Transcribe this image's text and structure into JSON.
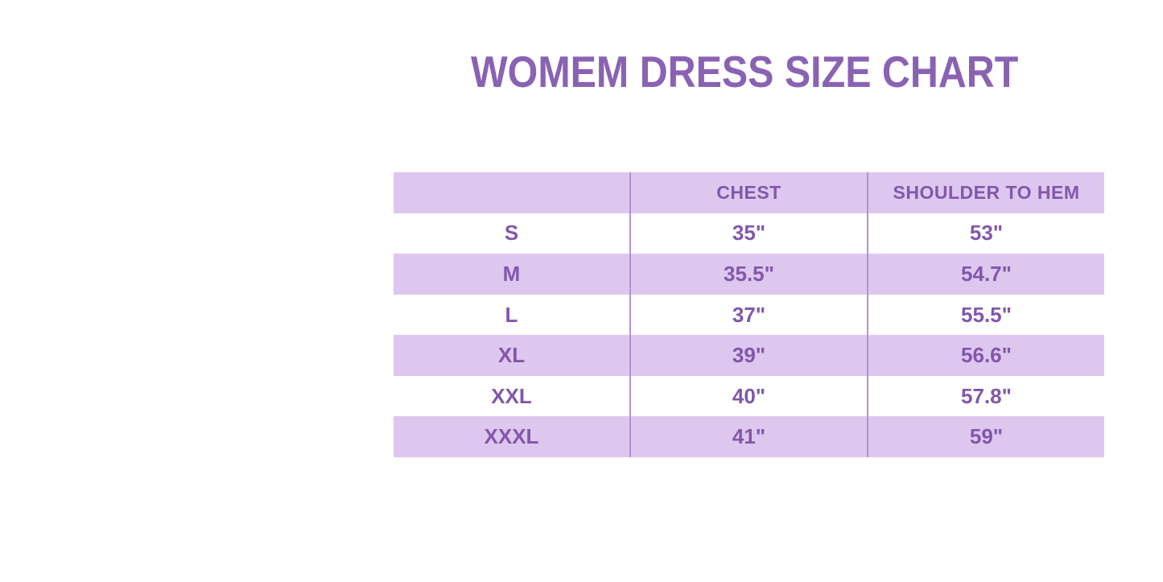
{
  "chart_data": {
    "type": "table",
    "title": "WOMEM DRESS SIZE CHART",
    "columns": [
      "",
      "CHEST",
      "SHOULDER TO HEM"
    ],
    "rows": [
      [
        "S",
        "35\"",
        "53\""
      ],
      [
        "M",
        "35.5\"",
        "54.7\""
      ],
      [
        "L",
        "37\"",
        "55.5\""
      ],
      [
        "XL",
        "39\"",
        "56.6\""
      ],
      [
        "XXL",
        "40\"",
        "57.8\""
      ],
      [
        "XXXL",
        "41\"",
        "59\""
      ]
    ],
    "layout_hints": {
      "striped": "header and every other row lavender, others white",
      "column_dividers": "thin purple vertical lines around middle column only",
      "first_header_cell_empty": true
    }
  },
  "colors": {
    "title": "#8a62b3",
    "text": "#8257ab",
    "band": "#ddc7ee",
    "divider": "#b78fd6",
    "background": "#ffffff"
  }
}
